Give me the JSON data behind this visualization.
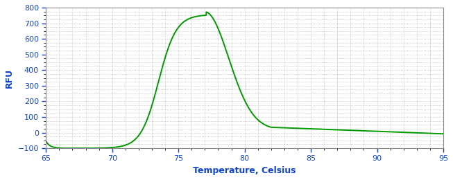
{
  "title": "",
  "xlabel": "Temperature, Celsius",
  "ylabel": "RFU",
  "xlim": [
    65,
    95
  ],
  "ylim": [
    -100,
    800
  ],
  "yticks": [
    -100,
    0,
    100,
    200,
    300,
    400,
    500,
    600,
    700,
    800
  ],
  "xticks": [
    65,
    70,
    75,
    80,
    85,
    90,
    95
  ],
  "line_color": "#009900",
  "bg_color": "#f0f4f0",
  "grid_color": "#aaaaaa",
  "label_color": "#1144cc",
  "tick_color": "#1144cc",
  "spine_color": "#888888",
  "xlabel_fontsize": 9,
  "ylabel_fontsize": 9,
  "tick_fontsize": 8,
  "linewidth": 1.4
}
